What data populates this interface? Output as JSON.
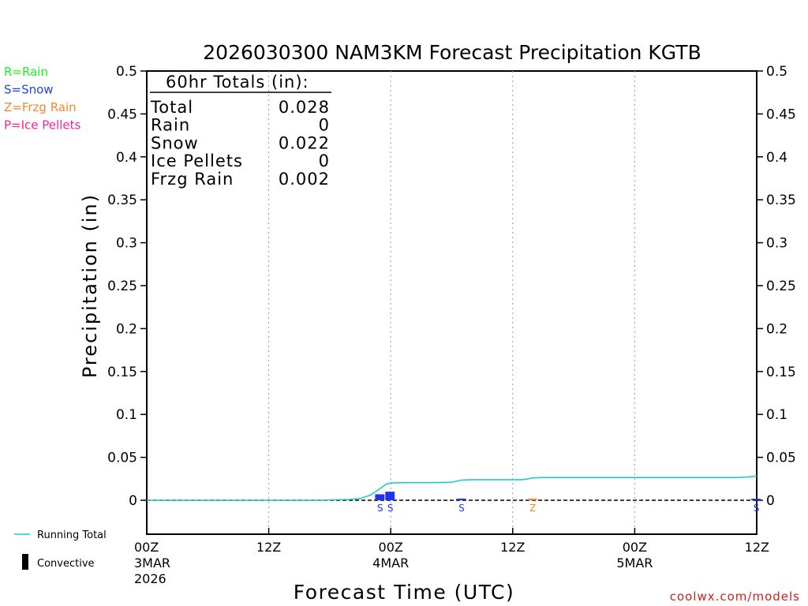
{
  "chart_data": {
    "type": "bar",
    "title": "2026030300 NAM3KM Forecast Precipitation KGTB",
    "xlabel": "Forecast Time (UTC)",
    "ylabel": "Precipitation (in)",
    "ylim": [
      -0.04,
      0.5
    ],
    "xlim_hours": [
      0,
      60
    ],
    "yticks": [
      "0",
      "0.05",
      "0.1",
      "0.15",
      "0.2",
      "0.25",
      "0.3",
      "0.35",
      "0.4",
      "0.45",
      "0.5"
    ],
    "ytick_values": [
      0,
      0.05,
      0.1,
      0.15,
      0.2,
      0.25,
      0.3,
      0.35,
      0.4,
      0.45,
      0.5
    ],
    "xticks": [
      {
        "hour": 0,
        "label": "00Z",
        "sub1": "3MAR",
        "sub2": "2026"
      },
      {
        "hour": 12,
        "label": "12Z",
        "sub1": "",
        "sub2": ""
      },
      {
        "hour": 24,
        "label": "00Z",
        "sub1": "4MAR",
        "sub2": ""
      },
      {
        "hour": 36,
        "label": "12Z",
        "sub1": "",
        "sub2": ""
      },
      {
        "hour": 48,
        "label": "00Z",
        "sub1": "5MAR",
        "sub2": ""
      },
      {
        "hour": 60,
        "label": "12Z",
        "sub1": "",
        "sub2": ""
      }
    ],
    "grid_hours": [
      12,
      24,
      36,
      48
    ],
    "hourly_bars": [
      {
        "hour": 23,
        "value": 0.007,
        "type": "S",
        "color": "#2233ee"
      },
      {
        "hour": 24,
        "value": 0.01,
        "type": "S",
        "color": "#2233ee"
      },
      {
        "hour": 31,
        "value": 0.002,
        "type": "S",
        "color": "#2233ee"
      },
      {
        "hour": 38,
        "value": 0.002,
        "type": "Z",
        "color": "#ee8833"
      },
      {
        "hour": 60,
        "value": 0.001,
        "type": "S",
        "color": "#2233ee"
      }
    ],
    "running_total": {
      "name": "Running Total",
      "color": "#22cccc",
      "points": [
        [
          0,
          0
        ],
        [
          17,
          0
        ],
        [
          18,
          0.0005
        ],
        [
          20,
          0.001
        ],
        [
          21,
          0.002
        ],
        [
          22,
          0.006
        ],
        [
          23,
          0.014
        ],
        [
          23.6,
          0.019
        ],
        [
          24,
          0.02
        ],
        [
          25,
          0.0205
        ],
        [
          26,
          0.0205
        ],
        [
          28,
          0.0205
        ],
        [
          30,
          0.021
        ],
        [
          31,
          0.0235
        ],
        [
          32,
          0.024
        ],
        [
          34,
          0.024
        ],
        [
          37,
          0.024
        ],
        [
          38,
          0.026
        ],
        [
          39,
          0.0265
        ],
        [
          44,
          0.0265
        ],
        [
          50,
          0.0265
        ],
        [
          58,
          0.0265
        ],
        [
          59,
          0.027
        ],
        [
          60,
          0.028
        ]
      ]
    },
    "legend": [
      {
        "label": "R=Rain",
        "color": "#22ee22"
      },
      {
        "label": "S=Snow",
        "color": "#2244ee"
      },
      {
        "label": "Z=Frzg Rain",
        "color": "#ee8833"
      },
      {
        "label": "P=Ice Pellets",
        "color": "#ee22aa"
      }
    ],
    "bottom_legend": {
      "running_total": "Running Total",
      "convective": "Convective"
    },
    "totals_box": {
      "header": "60hr Totals (in):",
      "rows": [
        {
          "label": "Total",
          "value": "0.028"
        },
        {
          "label": "Rain",
          "value": "0"
        },
        {
          "label": "Snow",
          "value": "0.022"
        },
        {
          "label": "Ice Pellets",
          "value": "0"
        },
        {
          "label": "Frzg Rain",
          "value": "0.002"
        }
      ]
    }
  },
  "credit": "coolwx.com/models"
}
